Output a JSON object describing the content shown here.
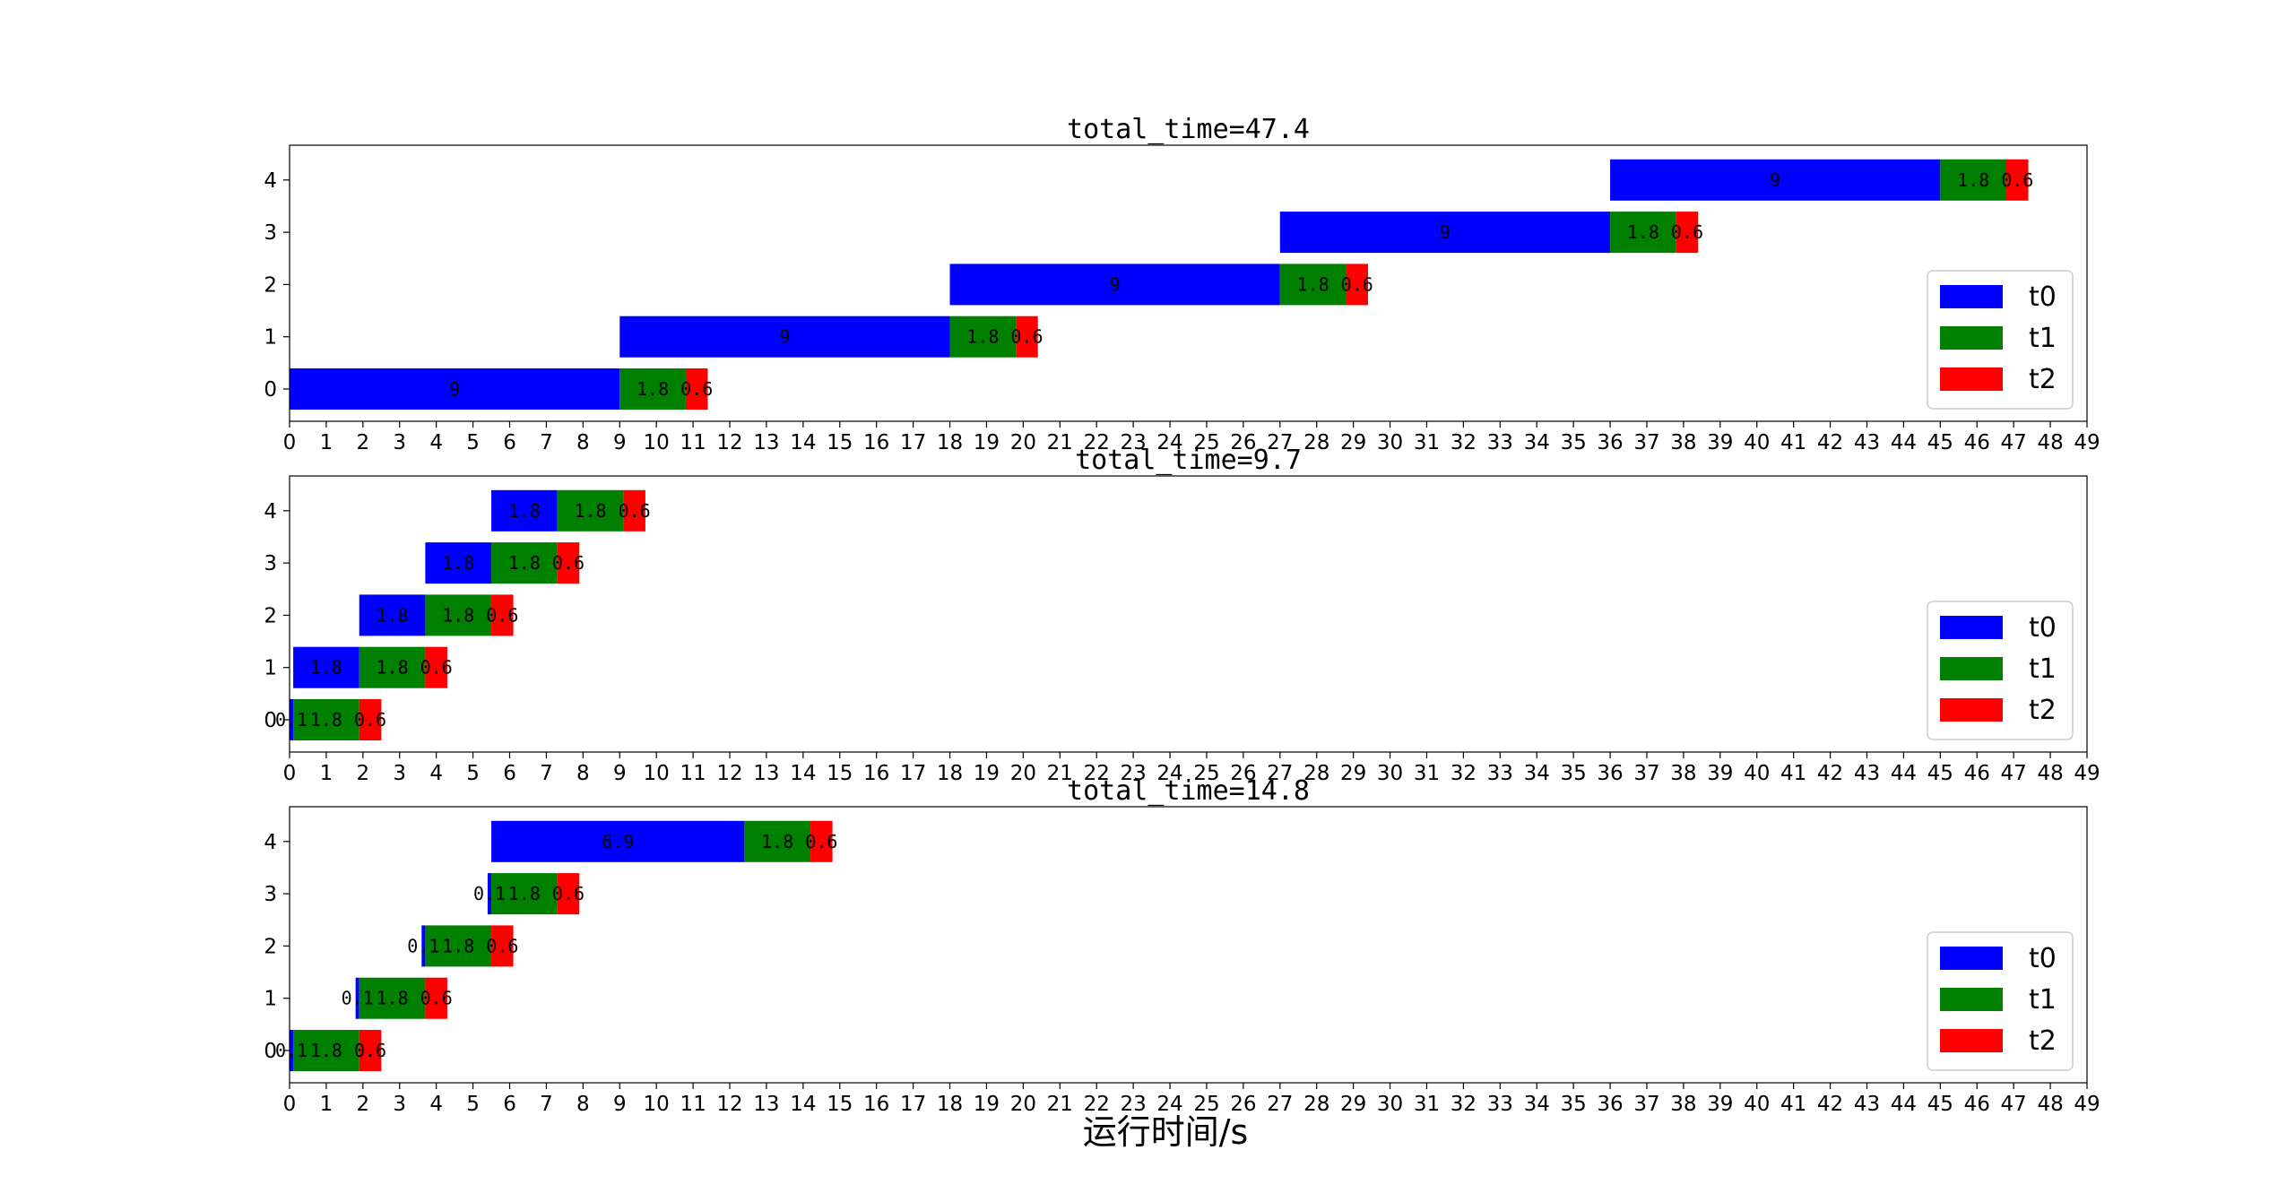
{
  "figure": {
    "xlabel": "运行时间/s"
  },
  "colors": {
    "t0": "#0000ff",
    "t1": "#008000",
    "t2": "#ff0000"
  },
  "chart_data": [
    {
      "type": "bar",
      "orientation": "horizontal-stacked-gantt",
      "title": "total_time=47.4",
      "xlim": [
        0,
        49
      ],
      "x_ticks": [
        0,
        1,
        2,
        3,
        4,
        5,
        6,
        7,
        8,
        9,
        10,
        11,
        12,
        13,
        14,
        15,
        16,
        17,
        18,
        19,
        20,
        21,
        22,
        23,
        24,
        25,
        26,
        27,
        28,
        29,
        30,
        31,
        32,
        33,
        34,
        35,
        36,
        37,
        38,
        39,
        40,
        41,
        42,
        43,
        44,
        45,
        46,
        47,
        48,
        49
      ],
      "categories": [
        "0",
        "1",
        "2",
        "3",
        "4"
      ],
      "legend": {
        "entries": [
          "t0",
          "t1",
          "t2"
        ],
        "placement": "center-right"
      },
      "series": [
        {
          "name": "t0",
          "starts": [
            0,
            9,
            18,
            27,
            36
          ],
          "values": [
            9,
            9,
            9,
            9,
            9
          ],
          "labels": [
            "9",
            "9",
            "9",
            "9",
            "9"
          ]
        },
        {
          "name": "t1",
          "starts": [
            9,
            18,
            27,
            36,
            45
          ],
          "values": [
            1.8,
            1.8,
            1.8,
            1.8,
            1.8
          ],
          "labels": [
            "1.8",
            "1.8",
            "1.8",
            "1.8",
            "1.8"
          ]
        },
        {
          "name": "t2",
          "starts": [
            10.8,
            19.8,
            28.8,
            37.8,
            46.8
          ],
          "values": [
            0.6,
            0.6,
            0.6,
            0.6,
            0.6
          ],
          "labels": [
            "0.6",
            "0.6",
            "0.6",
            "0.6",
            "0.6"
          ]
        }
      ]
    },
    {
      "type": "bar",
      "orientation": "horizontal-stacked-gantt",
      "title": "total_time=9.7",
      "xlim": [
        0,
        49
      ],
      "x_ticks": [
        0,
        1,
        2,
        3,
        4,
        5,
        6,
        7,
        8,
        9,
        10,
        11,
        12,
        13,
        14,
        15,
        16,
        17,
        18,
        19,
        20,
        21,
        22,
        23,
        24,
        25,
        26,
        27,
        28,
        29,
        30,
        31,
        32,
        33,
        34,
        35,
        36,
        37,
        38,
        39,
        40,
        41,
        42,
        43,
        44,
        45,
        46,
        47,
        48,
        49
      ],
      "categories": [
        "0",
        "1",
        "2",
        "3",
        "4"
      ],
      "legend": {
        "entries": [
          "t0",
          "t1",
          "t2"
        ],
        "placement": "center-right"
      },
      "series": [
        {
          "name": "t0",
          "starts": [
            0,
            0.1,
            1.9,
            3.7,
            5.5
          ],
          "values": [
            0.1,
            1.8,
            1.8,
            1.8,
            1.8
          ],
          "labels": [
            "0.1",
            "1.8",
            "1.8",
            "1.8",
            "1.8"
          ]
        },
        {
          "name": "t1",
          "starts": [
            0.1,
            1.9,
            3.7,
            5.5,
            7.3
          ],
          "values": [
            1.8,
            1.8,
            1.8,
            1.8,
            1.8
          ],
          "labels": [
            "1.8",
            "1.8",
            "1.8",
            "1.8",
            "1.8"
          ]
        },
        {
          "name": "t2",
          "starts": [
            1.9,
            3.7,
            5.5,
            7.3,
            9.1
          ],
          "values": [
            0.6,
            0.6,
            0.6,
            0.6,
            0.6
          ],
          "labels": [
            "0.6",
            "0.6",
            "0.6",
            "0.6",
            "0.6"
          ]
        }
      ]
    },
    {
      "type": "bar",
      "orientation": "horizontal-stacked-gantt",
      "title": "total_time=14.8",
      "xlim": [
        0,
        49
      ],
      "x_ticks": [
        0,
        1,
        2,
        3,
        4,
        5,
        6,
        7,
        8,
        9,
        10,
        11,
        12,
        13,
        14,
        15,
        16,
        17,
        18,
        19,
        20,
        21,
        22,
        23,
        24,
        25,
        26,
        27,
        28,
        29,
        30,
        31,
        32,
        33,
        34,
        35,
        36,
        37,
        38,
        39,
        40,
        41,
        42,
        43,
        44,
        45,
        46,
        47,
        48,
        49
      ],
      "categories": [
        "0",
        "1",
        "2",
        "3",
        "4"
      ],
      "legend": {
        "entries": [
          "t0",
          "t1",
          "t2"
        ],
        "placement": "center-right"
      },
      "series": [
        {
          "name": "t0",
          "starts": [
            0,
            1.8,
            3.6,
            5.4,
            5.5
          ],
          "values": [
            0.1,
            0.1,
            0.1,
            0.1,
            6.9
          ],
          "labels": [
            "0.1",
            "0.1",
            "0.1",
            "0.1",
            "6.9"
          ]
        },
        {
          "name": "t1",
          "starts": [
            0.1,
            1.9,
            3.7,
            5.5,
            12.4
          ],
          "values": [
            1.8,
            1.8,
            1.8,
            1.8,
            1.8
          ],
          "labels": [
            "1.8",
            "1.8",
            "1.8",
            "1.8",
            "1.8"
          ]
        },
        {
          "name": "t2",
          "starts": [
            1.9,
            3.7,
            5.5,
            7.3,
            14.2
          ],
          "values": [
            0.6,
            0.6,
            0.6,
            0.6,
            0.6
          ],
          "labels": [
            "0.6",
            "0.6",
            "0.6",
            "0.6",
            "0.6"
          ]
        }
      ]
    }
  ]
}
